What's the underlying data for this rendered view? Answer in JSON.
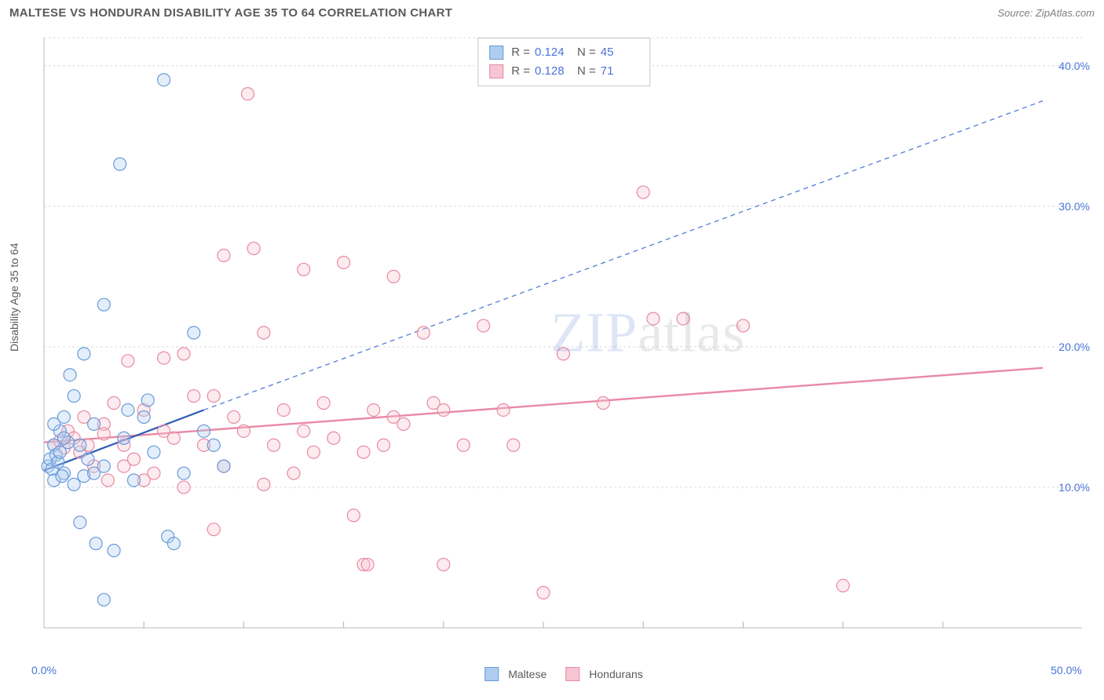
{
  "header": {
    "title": "MALTESE VS HONDURAN DISABILITY AGE 35 TO 64 CORRELATION CHART",
    "source": "Source: ZipAtlas.com"
  },
  "watermark": {
    "part1": "ZIP",
    "part2": "atlas"
  },
  "chart": {
    "type": "scatter",
    "y_axis_label": "Disability Age 35 to 64",
    "xlim": [
      0,
      50
    ],
    "ylim": [
      0,
      42
    ],
    "x_ticks_major": [
      0,
      50
    ],
    "x_ticks_minor": [
      5,
      10,
      15,
      20,
      25,
      30,
      35,
      40,
      45
    ],
    "y_ticks_labeled": [
      10,
      20,
      30,
      40
    ],
    "y_grid_lines": [
      10,
      20,
      30,
      40,
      42
    ],
    "background_color": "#ffffff",
    "grid_color": "#dcdcdc",
    "grid_dash": "3,3",
    "axis_text_color": "#4a74d8",
    "marker_radius": 8,
    "marker_fill_opacity": 0.35,
    "marker_stroke_width": 1.2,
    "series": [
      {
        "name": "Maltese",
        "color": "#6a9bd8",
        "fill": "#aecdf0",
        "R": "0.124",
        "N": "45",
        "trend": {
          "x1": 0,
          "y1": 11.2,
          "x2": 8,
          "y2": 15.5,
          "x2b": 50,
          "y2b": 37.5,
          "solid_until_x": 8,
          "stroke_width": 2.2
        },
        "points": [
          [
            0.2,
            11.5
          ],
          [
            0.3,
            12.0
          ],
          [
            0.4,
            11.3
          ],
          [
            0.5,
            13.0
          ],
          [
            0.5,
            10.5
          ],
          [
            0.6,
            12.3
          ],
          [
            0.7,
            11.8
          ],
          [
            0.8,
            14.0
          ],
          [
            0.8,
            12.5
          ],
          [
            1.0,
            11.0
          ],
          [
            1.0,
            15.0
          ],
          [
            1.2,
            13.2
          ],
          [
            1.3,
            18.0
          ],
          [
            1.5,
            10.2
          ],
          [
            1.5,
            16.5
          ],
          [
            1.8,
            7.5
          ],
          [
            2.0,
            19.5
          ],
          [
            2.0,
            10.8
          ],
          [
            2.2,
            12.0
          ],
          [
            2.5,
            14.5
          ],
          [
            2.6,
            6.0
          ],
          [
            3.0,
            2.0
          ],
          [
            3.0,
            11.5
          ],
          [
            3.0,
            23.0
          ],
          [
            3.5,
            5.5
          ],
          [
            3.8,
            33.0
          ],
          [
            4.0,
            13.5
          ],
          [
            4.5,
            10.5
          ],
          [
            5.0,
            15.0
          ],
          [
            5.2,
            16.2
          ],
          [
            5.5,
            12.5
          ],
          [
            6.0,
            39.0
          ],
          [
            6.2,
            6.5
          ],
          [
            6.5,
            6.0
          ],
          [
            7.0,
            11.0
          ],
          [
            7.5,
            21.0
          ],
          [
            8.0,
            14.0
          ],
          [
            8.5,
            13.0
          ],
          [
            9.0,
            11.5
          ],
          [
            1.0,
            13.5
          ],
          [
            0.5,
            14.5
          ],
          [
            2.5,
            11.0
          ],
          [
            1.8,
            13.0
          ],
          [
            0.9,
            10.8
          ],
          [
            4.2,
            15.5
          ]
        ]
      },
      {
        "name": "Hondurans",
        "color": "#e88aa5",
        "fill": "#f5c5d2",
        "R": "0.128",
        "N": "71",
        "trend": {
          "x1": 0,
          "y1": 13.2,
          "x2": 50,
          "y2": 18.5,
          "stroke_width": 2.4
        },
        "points": [
          [
            0.5,
            13.0
          ],
          [
            0.8,
            13.3
          ],
          [
            1.0,
            12.8
          ],
          [
            1.2,
            14.0
          ],
          [
            1.5,
            13.5
          ],
          [
            1.8,
            12.5
          ],
          [
            2.0,
            15.0
          ],
          [
            2.2,
            13.0
          ],
          [
            2.5,
            11.5
          ],
          [
            3.0,
            14.5
          ],
          [
            3.2,
            10.5
          ],
          [
            3.5,
            16.0
          ],
          [
            4.0,
            13.0
          ],
          [
            4.2,
            19.0
          ],
          [
            4.5,
            12.0
          ],
          [
            5.0,
            15.5
          ],
          [
            5.5,
            11.0
          ],
          [
            6.0,
            14.0
          ],
          [
            6.5,
            13.5
          ],
          [
            7.0,
            10.0
          ],
          [
            7.5,
            16.5
          ],
          [
            8.0,
            13.0
          ],
          [
            8.5,
            7.0
          ],
          [
            9.0,
            26.5
          ],
          [
            9.5,
            15.0
          ],
          [
            10.0,
            14.0
          ],
          [
            10.2,
            38.0
          ],
          [
            10.5,
            27.0
          ],
          [
            11.0,
            21.0
          ],
          [
            11.5,
            13.0
          ],
          [
            12.0,
            15.5
          ],
          [
            13.0,
            25.5
          ],
          [
            13.5,
            12.5
          ],
          [
            14.0,
            16.0
          ],
          [
            15.0,
            26.0
          ],
          [
            15.5,
            8.0
          ],
          [
            16.0,
            4.5
          ],
          [
            16.2,
            4.5
          ],
          [
            16.5,
            15.5
          ],
          [
            17.0,
            13.0
          ],
          [
            17.5,
            25.0
          ],
          [
            18.0,
            14.5
          ],
          [
            19.0,
            21.0
          ],
          [
            19.5,
            16.0
          ],
          [
            20.0,
            4.5
          ],
          [
            21.0,
            13.0
          ],
          [
            22.0,
            21.5
          ],
          [
            23.0,
            15.5
          ],
          [
            23.5,
            13.0
          ],
          [
            25.0,
            2.5
          ],
          [
            26.0,
            19.5
          ],
          [
            28.0,
            16.0
          ],
          [
            30.0,
            31.0
          ],
          [
            30.5,
            22.0
          ],
          [
            32.0,
            22.0
          ],
          [
            35.0,
            21.5
          ],
          [
            40.0,
            3.0
          ],
          [
            6.0,
            19.2
          ],
          [
            7.0,
            19.5
          ],
          [
            3.0,
            13.8
          ],
          [
            4.0,
            11.5
          ],
          [
            5.0,
            10.5
          ],
          [
            8.5,
            16.5
          ],
          [
            9.0,
            11.5
          ],
          [
            11.0,
            10.2
          ],
          [
            12.5,
            11.0
          ],
          [
            13.0,
            14.0
          ],
          [
            14.5,
            13.5
          ],
          [
            16.0,
            12.5
          ],
          [
            17.5,
            15.0
          ],
          [
            20.0,
            15.5
          ]
        ]
      }
    ],
    "bottom_legend": [
      {
        "label": "Maltese",
        "swatch_fill": "#aecdf0",
        "swatch_stroke": "#6a9bd8"
      },
      {
        "label": "Hondurans",
        "swatch_fill": "#f5c5d2",
        "swatch_stroke": "#e88aa5"
      }
    ]
  }
}
